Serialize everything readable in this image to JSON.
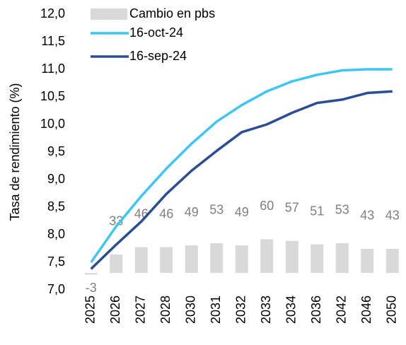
{
  "chart_data": {
    "type": "line",
    "y_label": "Tasa de rendimiento (%)",
    "categories": [
      "2025",
      "2026",
      "2027",
      "2028",
      "2030",
      "2031",
      "2032",
      "2033",
      "2034",
      "2036",
      "2042",
      "2046",
      "2050"
    ],
    "ylim": [
      7.0,
      12.0
    ],
    "yticks": [
      {
        "value": 7.0,
        "label": "7,0"
      },
      {
        "value": 7.5,
        "label": "7,5"
      },
      {
        "value": 8.0,
        "label": "8,0"
      },
      {
        "value": 8.5,
        "label": "8,5"
      },
      {
        "value": 9.0,
        "label": "9,0"
      },
      {
        "value": 9.5,
        "label": "9,5"
      },
      {
        "value": 10.0,
        "label": "10,0"
      },
      {
        "value": 10.5,
        "label": "10,5"
      },
      {
        "value": 11.0,
        "label": "11,0"
      },
      {
        "value": 11.5,
        "label": "11,5"
      },
      {
        "value": 12.0,
        "label": "12,0"
      }
    ],
    "y2lim": [
      -30,
      460
    ],
    "series": [
      {
        "name": "Cambio en pbs",
        "type": "bar",
        "axis": "y2",
        "color": "#d9d9d9",
        "values": [
          -3,
          33,
          46,
          46,
          49,
          53,
          49,
          60,
          57,
          51,
          53,
          43,
          43
        ]
      },
      {
        "name": "16-oct-24",
        "type": "line",
        "color": "#3ec6f2",
        "values": [
          7.5,
          8.15,
          8.7,
          9.2,
          9.65,
          10.05,
          10.35,
          10.6,
          10.78,
          10.9,
          10.98,
          11.0,
          11.0
        ]
      },
      {
        "name": "16-sep-24",
        "type": "line",
        "color": "#2a4d93",
        "values": [
          7.38,
          7.82,
          8.24,
          8.74,
          9.16,
          9.52,
          9.86,
          10.0,
          10.21,
          10.39,
          10.45,
          10.57,
          10.6
        ]
      }
    ]
  }
}
